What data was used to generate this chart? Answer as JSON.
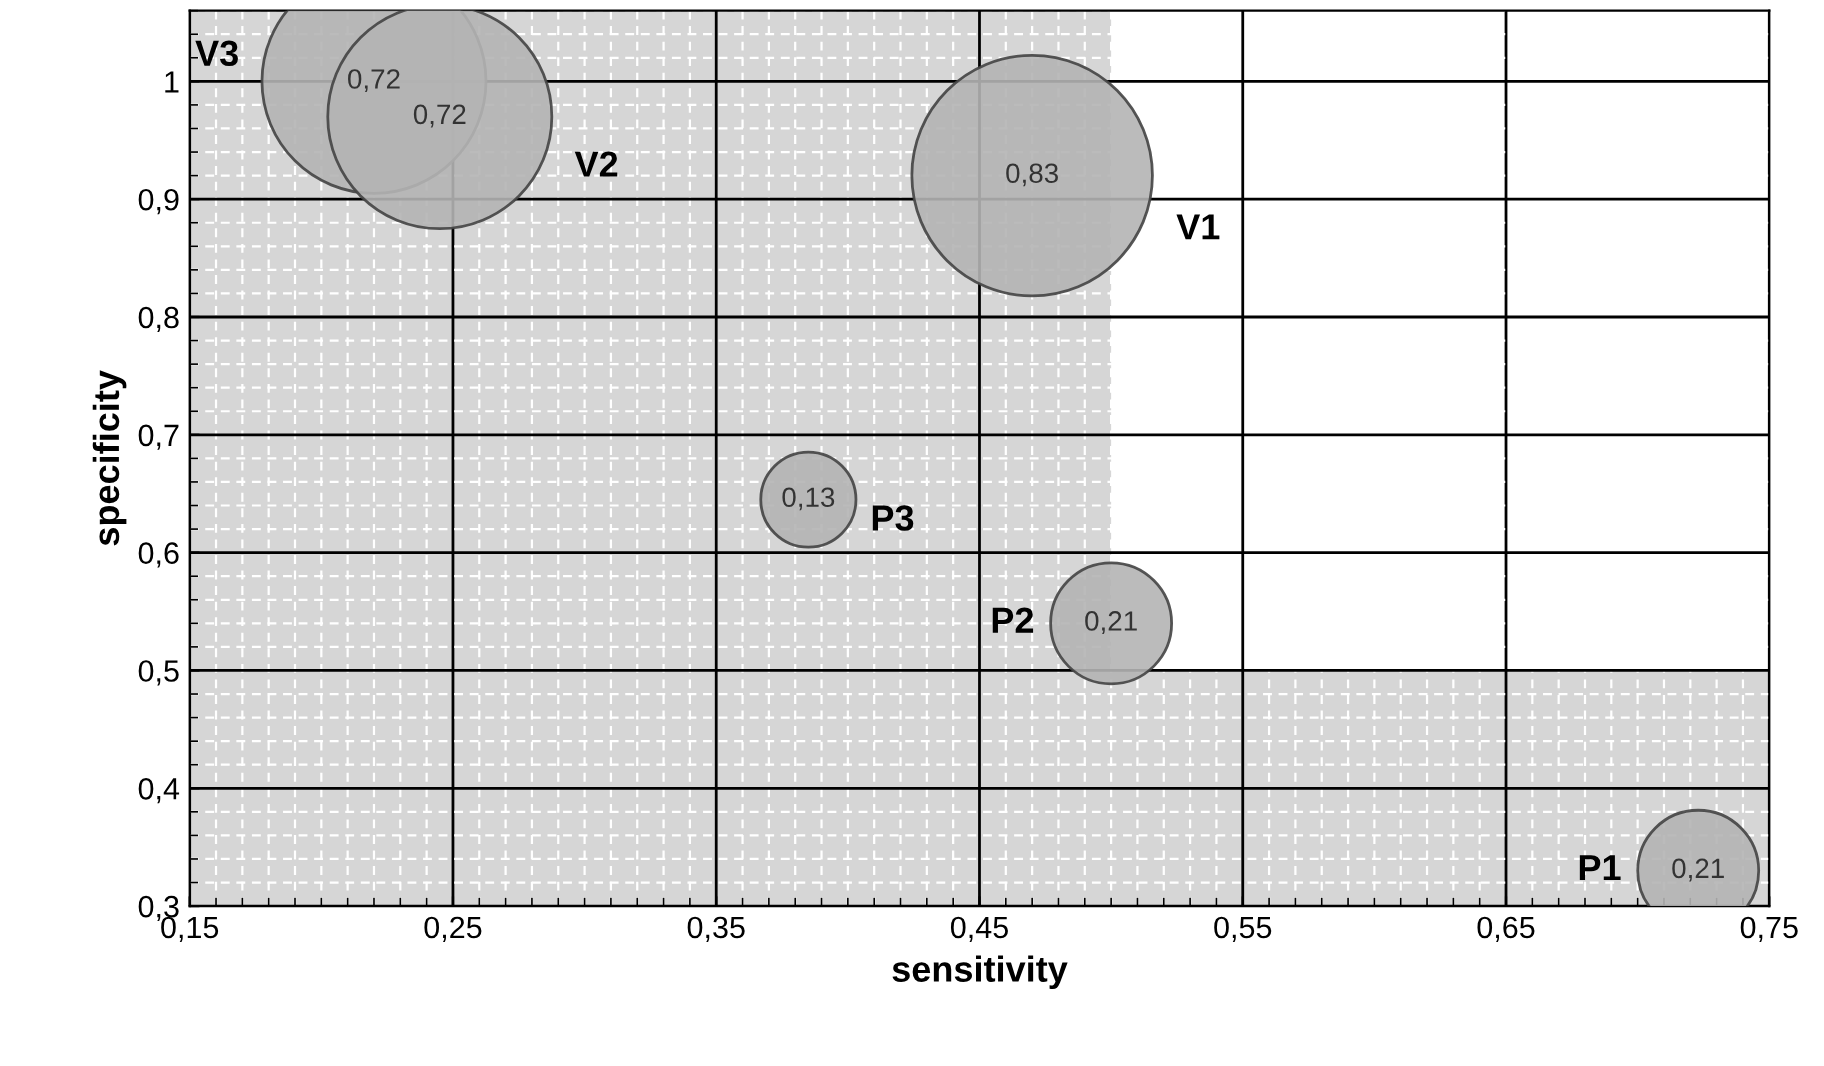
{
  "chart_data": {
    "type": "bubble",
    "xlabel": "sensitivity",
    "ylabel": "specificity",
    "x": [
      0.22,
      0.245,
      0.47,
      0.385,
      0.5,
      0.723
    ],
    "values": [
      1.0,
      0.97,
      0.92,
      0.645,
      0.54,
      0.33
    ],
    "sizes": [
      0.72,
      0.72,
      0.83,
      0.13,
      0.21,
      0.21
    ],
    "value_labels": [
      "0,72",
      "0,72",
      "0,83",
      "0,13",
      "0,21",
      "0,21"
    ],
    "color": "#b4b4b4",
    "annotations": [
      "V3",
      "V2",
      "V1",
      "P3",
      "P2",
      "P1"
    ],
    "bands": [
      {
        "axis": "x",
        "from": 0.15,
        "to": 0.5,
        "color": "#d6d6d6"
      },
      {
        "axis": "y",
        "from": 0.3,
        "to": 0.5,
        "color": "#d6d6d6"
      }
    ],
    "xlim": [
      0.15,
      0.75
    ],
    "ylim": [
      0.3,
      1.06
    ],
    "xticks": [
      {
        "value": 0.15,
        "label": "0,15"
      },
      {
        "value": 0.25,
        "label": "0,25"
      },
      {
        "value": 0.35,
        "label": "0,35"
      },
      {
        "value": 0.45,
        "label": "0,45"
      },
      {
        "value": 0.55,
        "label": "0,55"
      },
      {
        "value": 0.65,
        "label": "0,65"
      },
      {
        "value": 0.75,
        "label": "0,75"
      }
    ],
    "yticks": [
      {
        "value": 0.3,
        "label": "0,3"
      },
      {
        "value": 0.4,
        "label": "0,4"
      },
      {
        "value": 0.5,
        "label": "0,5"
      },
      {
        "value": 0.6,
        "label": "0,6"
      },
      {
        "value": 0.7,
        "label": "0,7"
      },
      {
        "value": 0.8,
        "label": "0,8"
      },
      {
        "value": 0.9,
        "label": "0,9"
      },
      {
        "value": 1,
        "label": "1"
      }
    ],
    "grid": true
  }
}
